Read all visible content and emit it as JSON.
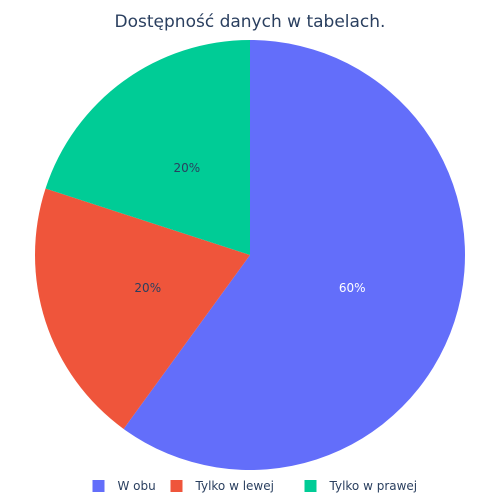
{
  "chart_data": {
    "type": "pie",
    "title": "Dostępność danych w tabelach.",
    "categories": [
      "W obu",
      "Tylko w lewej",
      "Tylko w prawej"
    ],
    "values": [
      60,
      20,
      20
    ],
    "labels": [
      "60%",
      "20%",
      "20%"
    ],
    "colors": [
      "#636efa",
      "#ef553b",
      "#00cc96"
    ],
    "label_colors": [
      "#ffffff",
      "#2a3f5f",
      "#2a3f5f"
    ],
    "direction": "clockwise",
    "start_angle_deg": 90,
    "legend_position": "bottom",
    "legend": {
      "items": [
        "W obu",
        "Tylko w lewej",
        "Tylko w prawej"
      ]
    }
  }
}
